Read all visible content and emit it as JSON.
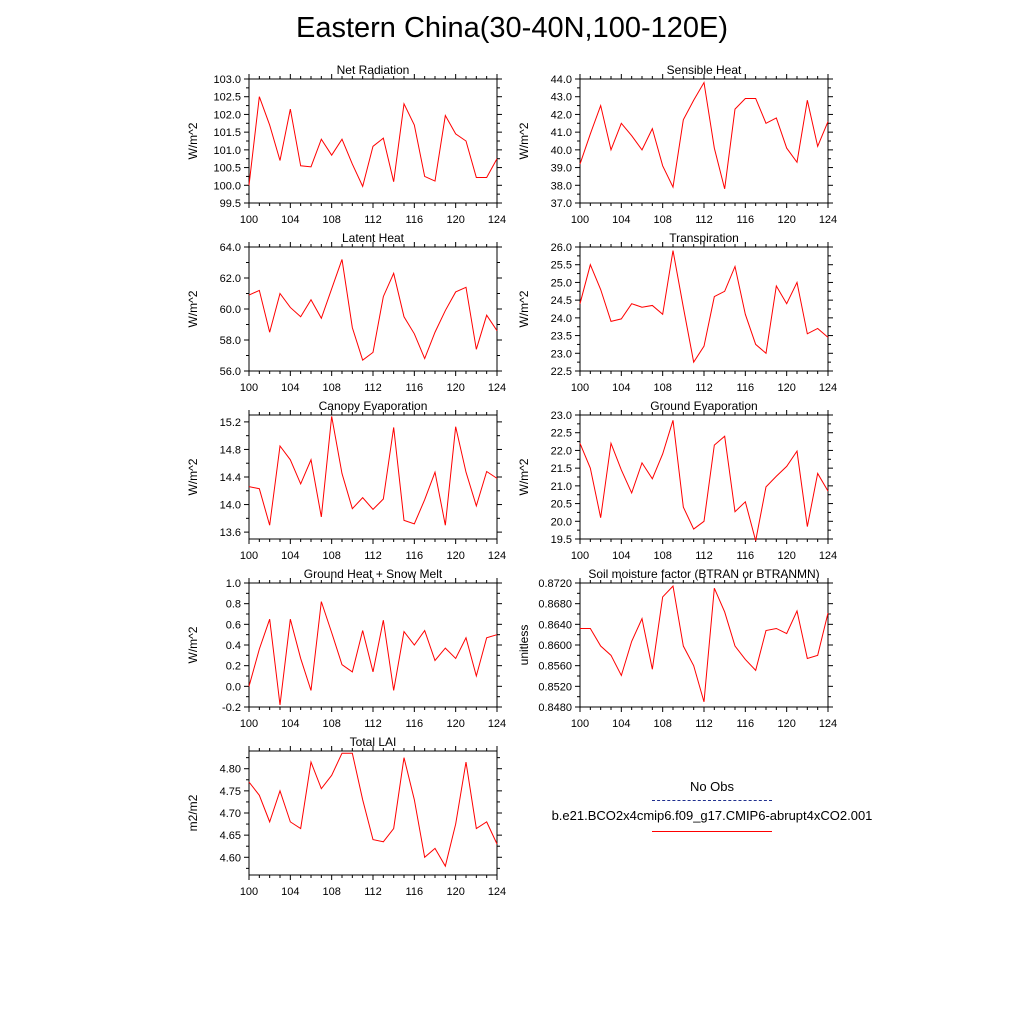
{
  "title": "Eastern China(30-40N,100-120E)",
  "legend": {
    "obs_label": "No Obs",
    "model_label": "b.e21.BCO2x4cmip6.f09_g17.CMIP6-abrupt4xCO2.001",
    "obs_color": "#1f2f8f",
    "model_color": "#ff0000"
  },
  "chart_data": [
    {
      "type": "line",
      "title": "Net Radiation",
      "ylabel": "W/m^2",
      "xlim": [
        100,
        124
      ],
      "ylim": [
        99.5,
        103.0
      ],
      "xticks": [
        "100",
        "104",
        "108",
        "112",
        "116",
        "120",
        "124"
      ],
      "yticks": [
        "99.5",
        "100.0",
        "100.5",
        "101.0",
        "101.5",
        "102.0",
        "102.5",
        "103.0"
      ],
      "x": [
        100,
        101,
        102,
        103,
        104,
        105,
        106,
        107,
        108,
        109,
        110,
        111,
        112,
        113,
        114,
        115,
        116,
        117,
        118,
        119,
        120,
        121,
        122,
        123,
        124
      ],
      "values": [
        100.0,
        102.5,
        101.7,
        100.7,
        102.15,
        100.55,
        100.52,
        101.3,
        100.85,
        101.3,
        100.6,
        99.97,
        101.1,
        101.33,
        100.1,
        102.3,
        101.7,
        100.25,
        100.12,
        101.97,
        101.45,
        101.25,
        100.22,
        100.22,
        100.75
      ]
    },
    {
      "type": "line",
      "title": "Sensible Heat",
      "ylabel": "W/m^2",
      "xlim": [
        100,
        124
      ],
      "ylim": [
        37.0,
        44.0
      ],
      "xticks": [
        "100",
        "104",
        "108",
        "112",
        "116",
        "120",
        "124"
      ],
      "yticks": [
        "37.0",
        "38.0",
        "39.0",
        "40.0",
        "41.0",
        "42.0",
        "43.0",
        "44.0"
      ],
      "x": [
        100,
        101,
        102,
        103,
        104,
        105,
        106,
        107,
        108,
        109,
        110,
        111,
        112,
        113,
        114,
        115,
        116,
        117,
        118,
        119,
        120,
        121,
        122,
        123,
        124
      ],
      "values": [
        39.2,
        40.9,
        42.5,
        40.0,
        41.5,
        40.8,
        40.0,
        41.2,
        39.1,
        37.9,
        41.7,
        42.8,
        43.8,
        40.1,
        37.8,
        42.3,
        42.9,
        42.9,
        41.5,
        41.8,
        40.1,
        39.3,
        42.8,
        40.2,
        41.6
      ]
    },
    {
      "type": "line",
      "title": "Latent Heat",
      "ylabel": "W/m^2",
      "xlim": [
        100,
        124
      ],
      "ylim": [
        56.0,
        64.0
      ],
      "xticks": [
        "100",
        "104",
        "108",
        "112",
        "116",
        "120",
        "124"
      ],
      "yticks": [
        "56.0",
        "58.0",
        "60.0",
        "62.0",
        "64.0"
      ],
      "x": [
        100,
        101,
        102,
        103,
        104,
        105,
        106,
        107,
        108,
        109,
        110,
        111,
        112,
        113,
        114,
        115,
        116,
        117,
        118,
        119,
        120,
        121,
        122,
        123,
        124
      ],
      "values": [
        60.9,
        61.2,
        58.5,
        61.0,
        60.1,
        59.5,
        60.6,
        59.4,
        61.3,
        63.2,
        58.8,
        56.7,
        57.2,
        60.8,
        62.3,
        59.5,
        58.4,
        56.8,
        58.5,
        59.9,
        61.1,
        61.4,
        57.4,
        59.6,
        58.6
      ]
    },
    {
      "type": "line",
      "title": "Transpiration",
      "ylabel": "W/m^2",
      "xlim": [
        100,
        124
      ],
      "ylim": [
        22.5,
        26.0
      ],
      "xticks": [
        "100",
        "104",
        "108",
        "112",
        "116",
        "120",
        "124"
      ],
      "yticks": [
        "22.5",
        "23.0",
        "23.5",
        "24.0",
        "24.5",
        "25.0",
        "25.5",
        "26.0"
      ],
      "x": [
        100,
        101,
        102,
        103,
        104,
        105,
        106,
        107,
        108,
        109,
        110,
        111,
        112,
        113,
        114,
        115,
        116,
        117,
        118,
        119,
        120,
        121,
        122,
        123,
        124
      ],
      "values": [
        24.4,
        25.5,
        24.8,
        23.9,
        23.97,
        24.4,
        24.3,
        24.35,
        24.1,
        25.9,
        24.3,
        22.75,
        23.2,
        24.6,
        24.75,
        25.45,
        24.1,
        23.25,
        23.0,
        24.9,
        24.4,
        25.0,
        23.55,
        23.7,
        23.45
      ]
    },
    {
      "type": "line",
      "title": "Canopy Evaporation",
      "ylabel": "W/m^2",
      "xlim": [
        100,
        124
      ],
      "ylim": [
        13.5,
        15.3
      ],
      "xticks": [
        "100",
        "104",
        "108",
        "112",
        "116",
        "120",
        "124"
      ],
      "yticks": [
        "13.6",
        "14.0",
        "14.4",
        "14.8",
        "15.2"
      ],
      "x": [
        100,
        101,
        102,
        103,
        104,
        105,
        106,
        107,
        108,
        109,
        110,
        111,
        112,
        113,
        114,
        115,
        116,
        117,
        118,
        119,
        120,
        121,
        122,
        123,
        124
      ],
      "values": [
        14.26,
        14.23,
        13.7,
        14.85,
        14.65,
        14.3,
        14.65,
        13.82,
        15.28,
        14.45,
        13.94,
        14.1,
        13.93,
        14.08,
        15.12,
        13.77,
        13.72,
        14.07,
        14.47,
        13.7,
        15.13,
        14.47,
        13.98,
        14.48,
        14.38
      ]
    },
    {
      "type": "line",
      "title": "Ground Evaporation",
      "ylabel": "W/m^2",
      "xlim": [
        100,
        124
      ],
      "ylim": [
        19.5,
        23.0
      ],
      "xticks": [
        "100",
        "104",
        "108",
        "112",
        "116",
        "120",
        "124"
      ],
      "yticks": [
        "19.5",
        "20.0",
        "20.5",
        "21.0",
        "21.5",
        "22.0",
        "22.5",
        "23.0"
      ],
      "x": [
        100,
        101,
        102,
        103,
        104,
        105,
        106,
        107,
        108,
        109,
        110,
        111,
        112,
        113,
        114,
        115,
        116,
        117,
        118,
        119,
        120,
        121,
        122,
        123,
        124
      ],
      "values": [
        22.2,
        21.5,
        20.1,
        22.2,
        21.45,
        20.8,
        21.65,
        21.2,
        21.9,
        22.85,
        20.4,
        19.78,
        20.0,
        22.15,
        22.4,
        20.27,
        20.55,
        19.45,
        20.97,
        21.27,
        21.55,
        21.98,
        19.85,
        21.35,
        20.85
      ]
    },
    {
      "type": "line",
      "title": "Ground Heat + Snow Melt",
      "ylabel": "W/m^2",
      "xlim": [
        100,
        124
      ],
      "ylim": [
        -0.2,
        1.0
      ],
      "xticks": [
        "100",
        "104",
        "108",
        "112",
        "116",
        "120",
        "124"
      ],
      "yticks": [
        "-0.2",
        "0.0",
        "0.2",
        "0.4",
        "0.6",
        "0.8",
        "1.0"
      ],
      "x": [
        100,
        101,
        102,
        103,
        104,
        105,
        106,
        107,
        108,
        109,
        110,
        111,
        112,
        113,
        114,
        115,
        116,
        117,
        118,
        119,
        120,
        121,
        122,
        123,
        124
      ],
      "values": [
        0.0,
        0.36,
        0.65,
        -0.18,
        0.65,
        0.27,
        -0.04,
        0.82,
        0.52,
        0.21,
        0.14,
        0.54,
        0.14,
        0.64,
        -0.04,
        0.53,
        0.4,
        0.54,
        0.25,
        0.37,
        0.27,
        0.47,
        0.1,
        0.47,
        0.5
      ]
    },
    {
      "type": "line",
      "title": "Soil moisture factor (BTRAN or BTRANMN)",
      "ylabel": "unitless",
      "xlim": [
        100,
        124
      ],
      "ylim": [
        0.848,
        0.872
      ],
      "xticks": [
        "100",
        "104",
        "108",
        "112",
        "116",
        "120",
        "124"
      ],
      "yticks": [
        "0.8480",
        "0.8520",
        "0.8560",
        "0.8600",
        "0.8640",
        "0.8680",
        "0.8720"
      ],
      "x": [
        100,
        101,
        102,
        103,
        104,
        105,
        106,
        107,
        108,
        109,
        110,
        111,
        112,
        113,
        114,
        115,
        116,
        117,
        118,
        119,
        120,
        121,
        122,
        123,
        124
      ],
      "values": [
        0.8632,
        0.8632,
        0.8598,
        0.858,
        0.8541,
        0.8607,
        0.8651,
        0.8553,
        0.8693,
        0.8714,
        0.8598,
        0.856,
        0.849,
        0.871,
        0.8664,
        0.8598,
        0.8572,
        0.8551,
        0.8628,
        0.8632,
        0.8622,
        0.8666,
        0.8574,
        0.858,
        0.8662
      ]
    },
    {
      "type": "line",
      "title": "Total LAI",
      "ylabel": "m2/m2",
      "xlim": [
        100,
        124
      ],
      "ylim": [
        4.56,
        4.84
      ],
      "xticks": [
        "100",
        "104",
        "108",
        "112",
        "116",
        "120",
        "124"
      ],
      "yticks": [
        "4.60",
        "4.65",
        "4.70",
        "4.75",
        "4.80"
      ],
      "x": [
        100,
        101,
        102,
        103,
        104,
        105,
        106,
        107,
        108,
        109,
        110,
        111,
        112,
        113,
        114,
        115,
        116,
        117,
        118,
        119,
        120,
        121,
        122,
        123,
        124
      ],
      "values": [
        4.77,
        4.74,
        4.68,
        4.75,
        4.68,
        4.665,
        4.815,
        4.755,
        4.785,
        4.835,
        4.835,
        4.73,
        4.64,
        4.635,
        4.665,
        4.825,
        4.73,
        4.6,
        4.62,
        4.58,
        4.675,
        4.815,
        4.665,
        4.68,
        4.63
      ]
    }
  ]
}
